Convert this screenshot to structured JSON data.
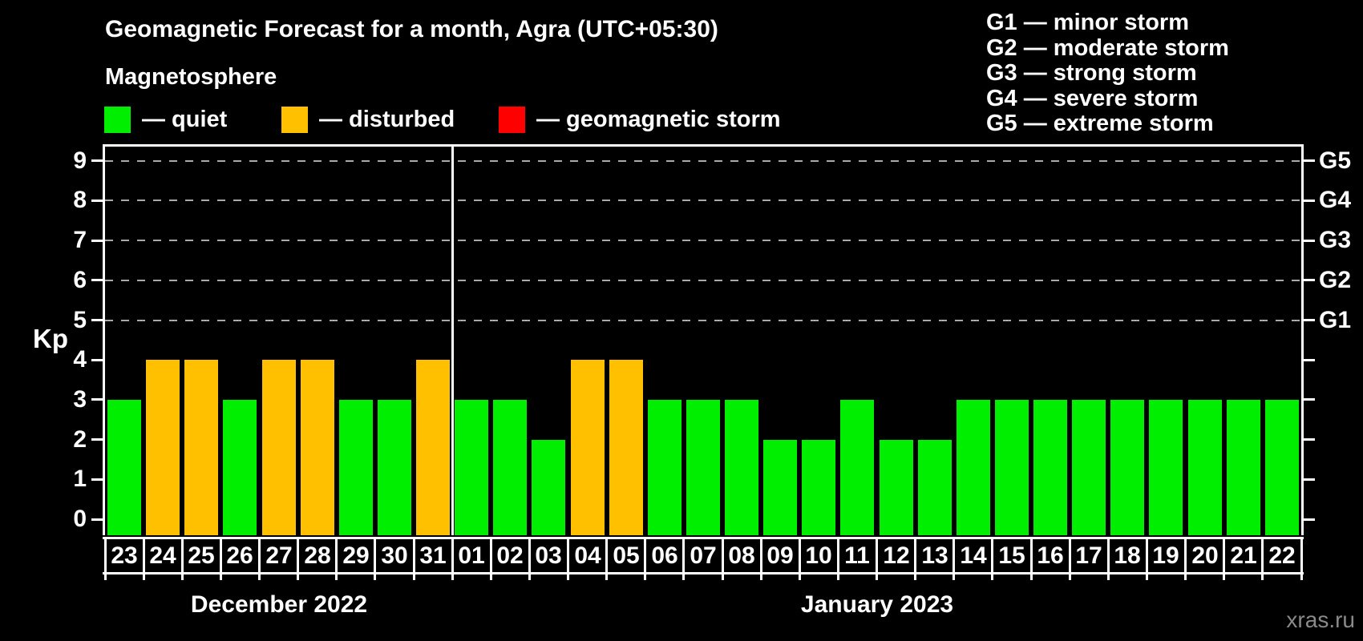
{
  "title": "Geomagnetic Forecast for a month, Agra (UTC+05:30)",
  "subtitle": "Magnetosphere",
  "legend": {
    "items": [
      {
        "key": "quiet",
        "label": "— quiet",
        "color": "#00ee00"
      },
      {
        "key": "disturbed",
        "label": "— disturbed",
        "color": "#ffc000"
      },
      {
        "key": "storm",
        "label": "— geomagnetic storm",
        "color": "#ff0000"
      }
    ]
  },
  "g_scale_legend": [
    "G1 — minor storm",
    "G2 — moderate storm",
    "G3 — strong storm",
    "G4 — severe storm",
    "G5 — extreme storm"
  ],
  "y_axis": {
    "label": "Kp",
    "ticks": [
      0,
      1,
      2,
      3,
      4,
      5,
      6,
      7,
      8,
      9
    ]
  },
  "right_axis": {
    "labels": [
      {
        "text": "G5",
        "kp": 9
      },
      {
        "text": "G4",
        "kp": 8
      },
      {
        "text": "G3",
        "kp": 7
      },
      {
        "text": "G2",
        "kp": 6
      },
      {
        "text": "G1",
        "kp": 5
      }
    ]
  },
  "watermark": "xras.ru",
  "chart_data": {
    "type": "bar",
    "title": "Geomagnetic Forecast for a month, Agra (UTC+05:30)",
    "xlabel": "",
    "ylabel": "Kp",
    "ylim": [
      0,
      9.4
    ],
    "grid": "horizontal dashed gridlines at Kp 5,6,7,8,9 (G1–G5 levels)",
    "legend_position": "top",
    "status_colors": {
      "quiet": "#00ee00",
      "disturbed": "#ffc000",
      "storm": "#ff0000"
    },
    "months": [
      {
        "label": "December 2022",
        "days": [
          {
            "day": "23",
            "kp": 3,
            "status": "quiet"
          },
          {
            "day": "24",
            "kp": 4,
            "status": "disturbed"
          },
          {
            "day": "25",
            "kp": 4,
            "status": "disturbed"
          },
          {
            "day": "26",
            "kp": 3,
            "status": "quiet"
          },
          {
            "day": "27",
            "kp": 4,
            "status": "disturbed"
          },
          {
            "day": "28",
            "kp": 4,
            "status": "disturbed"
          },
          {
            "day": "29",
            "kp": 3,
            "status": "quiet"
          },
          {
            "day": "30",
            "kp": 3,
            "status": "quiet"
          },
          {
            "day": "31",
            "kp": 4,
            "status": "disturbed"
          }
        ]
      },
      {
        "label": "January 2023",
        "days": [
          {
            "day": "01",
            "kp": 3,
            "status": "quiet"
          },
          {
            "day": "02",
            "kp": 3,
            "status": "quiet"
          },
          {
            "day": "03",
            "kp": 2,
            "status": "quiet"
          },
          {
            "day": "04",
            "kp": 4,
            "status": "disturbed"
          },
          {
            "day": "05",
            "kp": 4,
            "status": "disturbed"
          },
          {
            "day": "06",
            "kp": 3,
            "status": "quiet"
          },
          {
            "day": "07",
            "kp": 3,
            "status": "quiet"
          },
          {
            "day": "08",
            "kp": 3,
            "status": "quiet"
          },
          {
            "day": "09",
            "kp": 2,
            "status": "quiet"
          },
          {
            "day": "10",
            "kp": 2,
            "status": "quiet"
          },
          {
            "day": "11",
            "kp": 3,
            "status": "quiet"
          },
          {
            "day": "12",
            "kp": 2,
            "status": "quiet"
          },
          {
            "day": "13",
            "kp": 2,
            "status": "quiet"
          },
          {
            "day": "14",
            "kp": 3,
            "status": "quiet"
          },
          {
            "day": "15",
            "kp": 3,
            "status": "quiet"
          },
          {
            "day": "16",
            "kp": 3,
            "status": "quiet"
          },
          {
            "day": "17",
            "kp": 3,
            "status": "quiet"
          },
          {
            "day": "18",
            "kp": 3,
            "status": "quiet"
          },
          {
            "day": "19",
            "kp": 3,
            "status": "quiet"
          },
          {
            "day": "20",
            "kp": 3,
            "status": "quiet"
          },
          {
            "day": "21",
            "kp": 3,
            "status": "quiet"
          },
          {
            "day": "22",
            "kp": 3,
            "status": "quiet"
          }
        ]
      }
    ]
  }
}
